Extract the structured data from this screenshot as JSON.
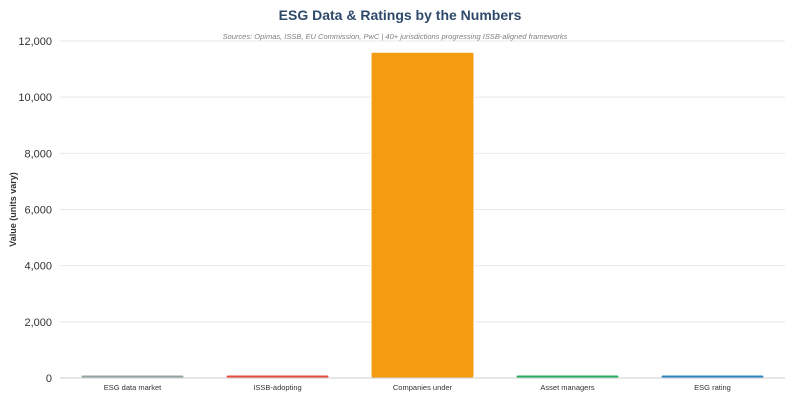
{
  "chart_data": {
    "type": "bar",
    "title": "ESG Data & Ratings by the Numbers",
    "subtitle": "Sources: Opimas, ISSB, EU Commission, PwC | 40+ jurisdictions progressing ISSB-aligned frameworks",
    "ylabel": "Value (units vary)",
    "xlabel": "",
    "ylim": [
      0,
      12000
    ],
    "yticks": [
      0,
      2000,
      4000,
      6000,
      8000,
      10000,
      12000
    ],
    "ytick_labels": [
      "0",
      "2,000",
      "4,000",
      "6,000",
      "8,000",
      "10,000",
      "12,000"
    ],
    "grid": true,
    "categories": [
      "ESG data market",
      "ISSB-adopting",
      "Companies under",
      "Asset managers",
      "ESG rating"
    ],
    "values": [
      2,
      20,
      11600,
      40,
      100
    ],
    "colors": [
      "#95a5a6",
      "#e74c3c",
      "#f39c12",
      "#27ae60",
      "#2e86c1"
    ]
  }
}
